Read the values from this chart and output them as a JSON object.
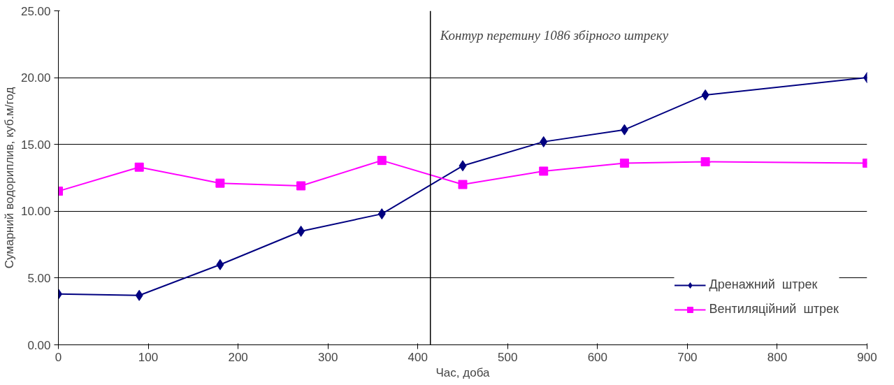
{
  "chart_data": {
    "type": "line",
    "xlabel": "Час, доба",
    "ylabel": "Сумарний водориплив, куб.м/год",
    "x": [
      0,
      90,
      180,
      270,
      360,
      450,
      540,
      630,
      720,
      900
    ],
    "series": [
      {
        "name": "Дренажний  штрек",
        "color": "#000080",
        "marker": "diamond",
        "values": [
          3.8,
          3.7,
          6.0,
          8.5,
          9.8,
          13.4,
          15.2,
          16.1,
          18.7,
          20.0
        ]
      },
      {
        "name": "Вентиляційний  штрек",
        "color": "#ff00ff",
        "marker": "square",
        "values": [
          11.5,
          13.3,
          12.1,
          11.9,
          13.8,
          12.0,
          13.0,
          13.6,
          13.7,
          13.6
        ]
      }
    ],
    "xlim": [
      0,
      900
    ],
    "xticks": [
      0,
      100,
      200,
      300,
      400,
      500,
      600,
      700,
      800,
      900
    ],
    "ylim": [
      0,
      25
    ],
    "yticks": [
      {
        "value": 0,
        "label": "0.00"
      },
      {
        "value": 5,
        "label": "5.00"
      },
      {
        "value": 10,
        "label": "10.00"
      },
      {
        "value": 15,
        "label": "15.00"
      },
      {
        "value": 20,
        "label": "20.00"
      },
      {
        "value": 25,
        "label": "25.00"
      }
    ],
    "ref_lines": [
      {
        "axis": "x",
        "value": 414,
        "label": "Контур перетину 1086 збірного штреку",
        "color": "#000000"
      }
    ],
    "grid": "y",
    "legend": "bottom right",
    "line_style": "solid"
  }
}
